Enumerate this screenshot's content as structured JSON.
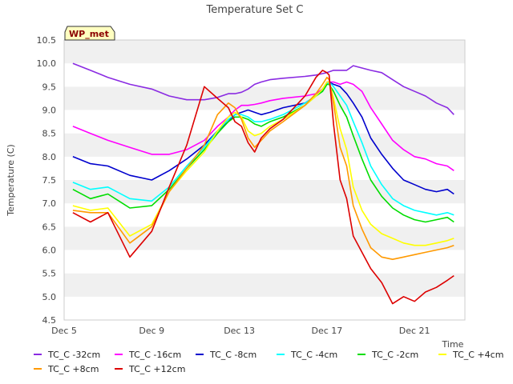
{
  "chart_data": {
    "type": "line",
    "title": "Temperature Set C",
    "xlabel": "Time",
    "ylabel": "Temperature (C)",
    "badge": "WP_met",
    "xlim": [
      0,
      18.3
    ],
    "ylim": [
      4.5,
      10.5
    ],
    "x_unit_note": "x = days since Dec 5",
    "x_ticks": [
      {
        "x": 0,
        "label": "Dec 5"
      },
      {
        "x": 4,
        "label": "Dec 9"
      },
      {
        "x": 8,
        "label": "Dec 13"
      },
      {
        "x": 12,
        "label": "Dec 17"
      },
      {
        "x": 16,
        "label": "Dec 21"
      }
    ],
    "y_ticks": [
      "4.5",
      "5.0",
      "5.5",
      "6.0",
      "6.5",
      "7.0",
      "7.5",
      "8.0",
      "8.5",
      "9.0",
      "9.5",
      "10.0",
      "10.5"
    ],
    "grid": "horizontal bands",
    "legend_position": "bottom",
    "x": [
      0.4,
      1.2,
      2.0,
      3.0,
      4.0,
      4.8,
      5.6,
      6.4,
      7.0,
      7.5,
      7.8,
      8.1,
      8.4,
      8.7,
      9.0,
      9.4,
      10.0,
      11.0,
      11.5,
      11.8,
      12.0,
      12.1,
      12.3,
      12.6,
      12.9,
      13.2,
      13.6,
      14.0,
      14.5,
      15.0,
      15.5,
      16.0,
      16.5,
      17.0,
      17.5,
      17.8
    ],
    "series": [
      {
        "name": "TC_C -32cm",
        "color": "#8a2be2",
        "values": [
          10.0,
          9.85,
          9.7,
          9.55,
          9.45,
          9.3,
          9.22,
          9.22,
          9.27,
          9.35,
          9.35,
          9.38,
          9.45,
          9.55,
          9.6,
          9.65,
          9.68,
          9.72,
          9.75,
          9.78,
          9.8,
          9.82,
          9.85,
          9.85,
          9.85,
          9.95,
          9.9,
          9.85,
          9.8,
          9.65,
          9.5,
          9.4,
          9.3,
          9.15,
          9.05,
          8.9
        ]
      },
      {
        "name": "TC_C -16cm",
        "color": "#ff00ff",
        "values": [
          8.65,
          8.5,
          8.35,
          8.2,
          8.05,
          8.05,
          8.15,
          8.35,
          8.65,
          8.85,
          9.0,
          9.1,
          9.1,
          9.12,
          9.15,
          9.2,
          9.25,
          9.3,
          9.35,
          9.45,
          9.55,
          9.6,
          9.6,
          9.55,
          9.6,
          9.55,
          9.4,
          9.05,
          8.7,
          8.35,
          8.15,
          8.0,
          7.95,
          7.85,
          7.8,
          7.7
        ]
      },
      {
        "name": "TC_C -8cm",
        "color": "#0000cd",
        "values": [
          8.0,
          7.85,
          7.8,
          7.6,
          7.5,
          7.7,
          7.95,
          8.25,
          8.55,
          8.75,
          8.9,
          8.95,
          9.0,
          8.95,
          8.9,
          8.95,
          9.05,
          9.15,
          9.3,
          9.45,
          9.6,
          9.6,
          9.55,
          9.5,
          9.35,
          9.15,
          8.85,
          8.4,
          8.05,
          7.75,
          7.5,
          7.4,
          7.3,
          7.25,
          7.3,
          7.2
        ]
      },
      {
        "name": "TC_C -4cm",
        "color": "#00ffff",
        "values": [
          7.45,
          7.3,
          7.35,
          7.1,
          7.05,
          7.35,
          7.8,
          8.2,
          8.55,
          8.8,
          8.9,
          8.9,
          8.85,
          8.75,
          8.75,
          8.8,
          8.9,
          9.15,
          9.3,
          9.4,
          9.55,
          9.6,
          9.5,
          9.3,
          9.1,
          8.75,
          8.3,
          7.8,
          7.4,
          7.1,
          6.95,
          6.85,
          6.8,
          6.75,
          6.8,
          6.75
        ]
      },
      {
        "name": "TC_C -2cm",
        "color": "#00dd00",
        "values": [
          7.3,
          7.1,
          7.2,
          6.9,
          6.95,
          7.3,
          7.75,
          8.15,
          8.5,
          8.75,
          8.85,
          8.85,
          8.8,
          8.7,
          8.65,
          8.75,
          8.85,
          9.1,
          9.3,
          9.4,
          9.55,
          9.55,
          9.4,
          9.1,
          8.85,
          8.45,
          7.95,
          7.5,
          7.15,
          6.9,
          6.75,
          6.65,
          6.6,
          6.65,
          6.7,
          6.6
        ]
      },
      {
        "name": "TC_C +4cm",
        "color": "#ffff00",
        "values": [
          6.95,
          6.85,
          6.9,
          6.3,
          6.55,
          7.25,
          7.7,
          8.1,
          8.55,
          8.85,
          8.95,
          8.85,
          8.55,
          8.45,
          8.5,
          8.65,
          8.8,
          9.1,
          9.3,
          9.45,
          9.6,
          9.6,
          9.25,
          8.6,
          8.15,
          7.35,
          6.85,
          6.55,
          6.35,
          6.25,
          6.15,
          6.1,
          6.1,
          6.15,
          6.2,
          6.25
        ]
      },
      {
        "name": "TC_C +8cm",
        "color": "#ff9900",
        "values": [
          6.85,
          6.8,
          6.8,
          6.15,
          6.5,
          7.25,
          7.75,
          8.25,
          8.9,
          9.15,
          9.05,
          8.8,
          8.4,
          8.2,
          8.35,
          8.55,
          8.75,
          9.1,
          9.35,
          9.55,
          9.7,
          9.65,
          9.15,
          8.2,
          7.8,
          6.95,
          6.45,
          6.05,
          5.85,
          5.8,
          5.85,
          5.9,
          5.95,
          6.0,
          6.05,
          6.1
        ]
      },
      {
        "name": "TC_C +12cm",
        "color": "#dd0000",
        "values": [
          6.8,
          6.6,
          6.8,
          5.85,
          6.4,
          7.35,
          8.25,
          9.5,
          9.25,
          9.05,
          8.75,
          8.65,
          8.3,
          8.1,
          8.4,
          8.6,
          8.8,
          9.3,
          9.7,
          9.85,
          9.8,
          9.75,
          8.7,
          7.5,
          7.1,
          6.3,
          5.95,
          5.6,
          5.3,
          4.85,
          5.0,
          4.9,
          5.1,
          5.2,
          5.35,
          5.45
        ]
      }
    ]
  }
}
